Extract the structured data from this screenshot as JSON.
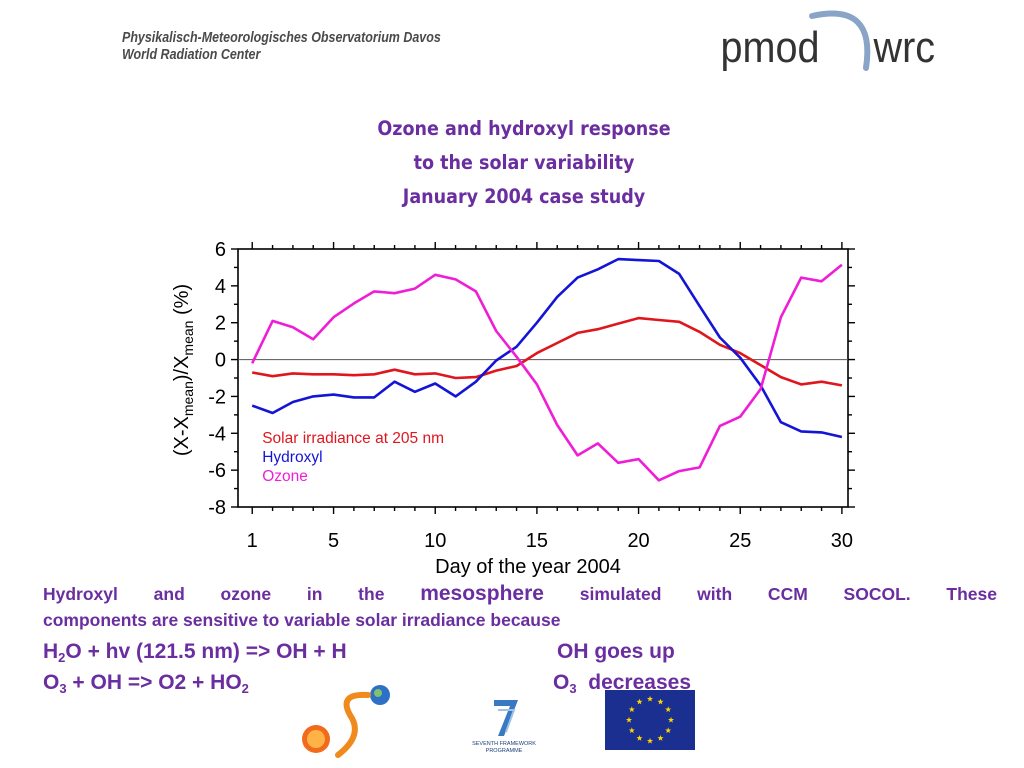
{
  "header": {
    "institute_line1": "Physikalisch-Meteorologisches Observatorium Davos",
    "institute_line2": "World Radiation Center",
    "logo_text_left": "pmod",
    "logo_text_right": "wrc"
  },
  "title": {
    "line1": "Ozone and hydroxyl response",
    "line2": "to the solar variability",
    "line3": "January 2004 case study"
  },
  "chart_data": {
    "type": "line",
    "xlabel": "Day of the year 2004",
    "ylabel_parts": [
      "(X-X",
      "mean",
      ")/X",
      "mean",
      " (%)"
    ],
    "xlim": [
      0.3,
      30.3
    ],
    "ylim": [
      -8,
      6
    ],
    "xticks": [
      1,
      5,
      10,
      15,
      20,
      25,
      30
    ],
    "yticks": [
      6,
      4,
      2,
      0,
      -2,
      -4,
      -6,
      -8
    ],
    "zero_line": true,
    "legend_placement": "lower-left",
    "x": [
      1,
      2,
      3,
      4,
      5,
      6,
      7,
      8,
      9,
      10,
      11,
      12,
      13,
      14,
      15,
      16,
      17,
      18,
      19,
      20,
      21,
      22,
      23,
      24,
      25,
      26,
      27,
      28,
      29,
      30
    ],
    "series": [
      {
        "name": "Solar irradiance at 205 nm",
        "color": "#e0161e",
        "values": [
          -0.7,
          -0.9,
          -0.75,
          -0.8,
          -0.8,
          -0.85,
          -0.8,
          -0.55,
          -0.8,
          -0.75,
          -1.0,
          -0.95,
          -0.6,
          -0.35,
          0.35,
          0.9,
          1.45,
          1.65,
          1.95,
          2.25,
          2.15,
          2.05,
          1.5,
          0.8,
          0.35,
          -0.3,
          -0.95,
          -1.35,
          -1.2,
          -1.4
        ]
      },
      {
        "name": "Hydroxyl",
        "color": "#1414d6",
        "values": [
          -2.5,
          -2.9,
          -2.3,
          -2.0,
          -1.9,
          -2.05,
          -2.05,
          -1.2,
          -1.75,
          -1.3,
          -2.0,
          -1.2,
          -0.05,
          0.7,
          2.0,
          3.4,
          4.45,
          4.9,
          5.45,
          5.4,
          5.35,
          4.65,
          2.9,
          1.2,
          0.1,
          -1.4,
          -3.4,
          -3.9,
          -3.95,
          -4.2
        ]
      },
      {
        "name": "Ozone",
        "color": "#ef1ed6",
        "values": [
          -0.2,
          2.1,
          1.75,
          1.1,
          2.3,
          3.05,
          3.7,
          3.6,
          3.85,
          4.6,
          4.35,
          3.7,
          1.55,
          0.15,
          -1.35,
          -3.55,
          -5.2,
          -4.55,
          -5.6,
          -5.4,
          -6.55,
          -6.05,
          -5.85,
          -3.6,
          -3.1,
          -1.6,
          2.3,
          4.45,
          4.25,
          5.15
        ]
      }
    ]
  },
  "description": {
    "sentence_part1": "Hydroxyl and ozone in the",
    "keyword": "mesosphere",
    "sentence_part2": "simulated with CCM SOCOL. These",
    "sentence_line2": "components are sensitive to variable solar irradiance because"
  },
  "equations": {
    "eq1_a": "H",
    "eq1_sub1": "2",
    "eq1_b": "O + hv (121.5 nm) => OH + H",
    "eq1_result": "OH goes up",
    "eq2_a": "O",
    "eq2_sub1": "3",
    "eq2_b": " + OH => O2 + HO",
    "eq2_sub2": "2",
    "eq2_result_a": "O",
    "eq2_result_sub": "3",
    "eq2_result_b": "  decreases"
  },
  "footer_logos": {
    "fp7_text_line1": "SEVENTH FRAMEWORK",
    "fp7_text_line2": "PROGRAMME"
  }
}
